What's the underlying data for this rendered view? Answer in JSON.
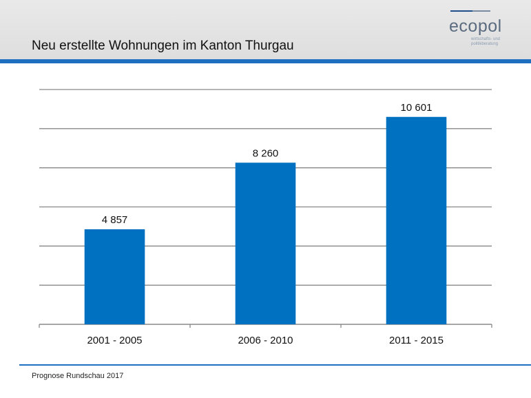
{
  "header": {
    "title": "Neu erstellte Wohnungen im Kanton Thurgau"
  },
  "logo": {
    "name_part1": "eco",
    "name_part2": "pol",
    "tagline_line1": "wirtschafts- und",
    "tagline_line2": "politikberatung"
  },
  "footer": {
    "source": "Prognose Rundschau 2017"
  },
  "colors": {
    "bar": "#0070c0",
    "accent": "#1f6fc0",
    "gridline": "#888888"
  },
  "chart_data": {
    "type": "bar",
    "title": "",
    "xlabel": "",
    "ylabel": "",
    "categories": [
      "2001 - 2005",
      "2006 - 2010",
      "2011 - 2015"
    ],
    "values": [
      4857,
      8260,
      10601
    ],
    "value_labels": [
      "4 857",
      "8 260",
      "10 601"
    ],
    "ylim": [
      0,
      12000
    ],
    "grid_step": 2000,
    "grid": true,
    "legend": "none"
  }
}
